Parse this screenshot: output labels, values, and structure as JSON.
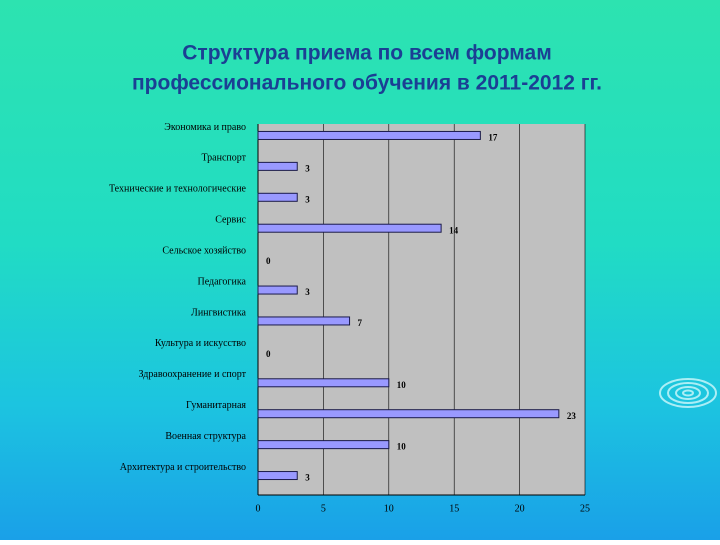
{
  "chart_data": {
    "type": "barh",
    "title": [
      "Структура приема по всем формам",
      "профессионального обучения в 2011-2012 гг."
    ],
    "categories": [
      "Экономика и право",
      "Транспорт",
      "Технические и технологические",
      "Сервис",
      "Сельское хозяйство",
      "Педагогика",
      "Лингвистика",
      "Культура и искусство",
      "Здравоохранение и спорт",
      "Гуманитарная",
      "Военная структура",
      "Архитектура и строительство"
    ],
    "values": [
      17,
      3,
      3,
      14,
      0,
      3,
      7,
      0,
      10,
      23,
      10,
      3
    ],
    "color": "#9999ff",
    "xlim": [
      0,
      25
    ],
    "xticks": [
      0,
      5,
      10,
      15,
      20,
      25
    ],
    "grid": true
  }
}
